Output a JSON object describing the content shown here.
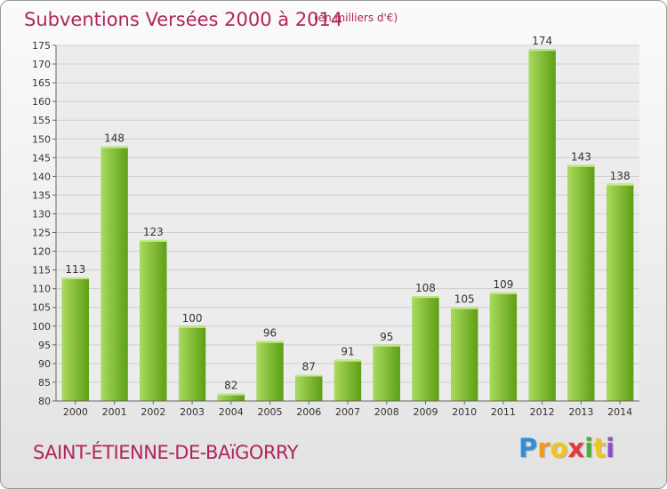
{
  "header": {
    "title": "Subventions Versées 2000 à 2014",
    "subtitle": "(en milliers d'€)"
  },
  "footer": {
    "commune": "SAINT-ÉTIENNE-DE-BAïGORRY",
    "logo_text": "Proxiti"
  },
  "colors": {
    "title": "#b0245c",
    "bar_light": "#a4d65a",
    "bar_dark": "#62a518",
    "background": "#ececec"
  },
  "chart_data": {
    "type": "bar",
    "title": "Subventions Versées 2000 à 2014",
    "subtitle": "(en milliers d'€)",
    "xlabel": "",
    "ylabel": "",
    "categories": [
      "2000",
      "2001",
      "2002",
      "2003",
      "2004",
      "2005",
      "2006",
      "2007",
      "2008",
      "2009",
      "2010",
      "2011",
      "2012",
      "2013",
      "2014"
    ],
    "values": [
      113,
      148,
      123,
      100,
      82,
      96,
      87,
      91,
      95,
      108,
      105,
      109,
      174,
      143,
      138
    ],
    "ylim": [
      80,
      175
    ],
    "yticks": [
      80,
      85,
      90,
      95,
      100,
      105,
      110,
      115,
      120,
      125,
      130,
      135,
      140,
      145,
      150,
      155,
      160,
      165,
      170,
      175
    ],
    "grid": true,
    "data_labels": true
  }
}
